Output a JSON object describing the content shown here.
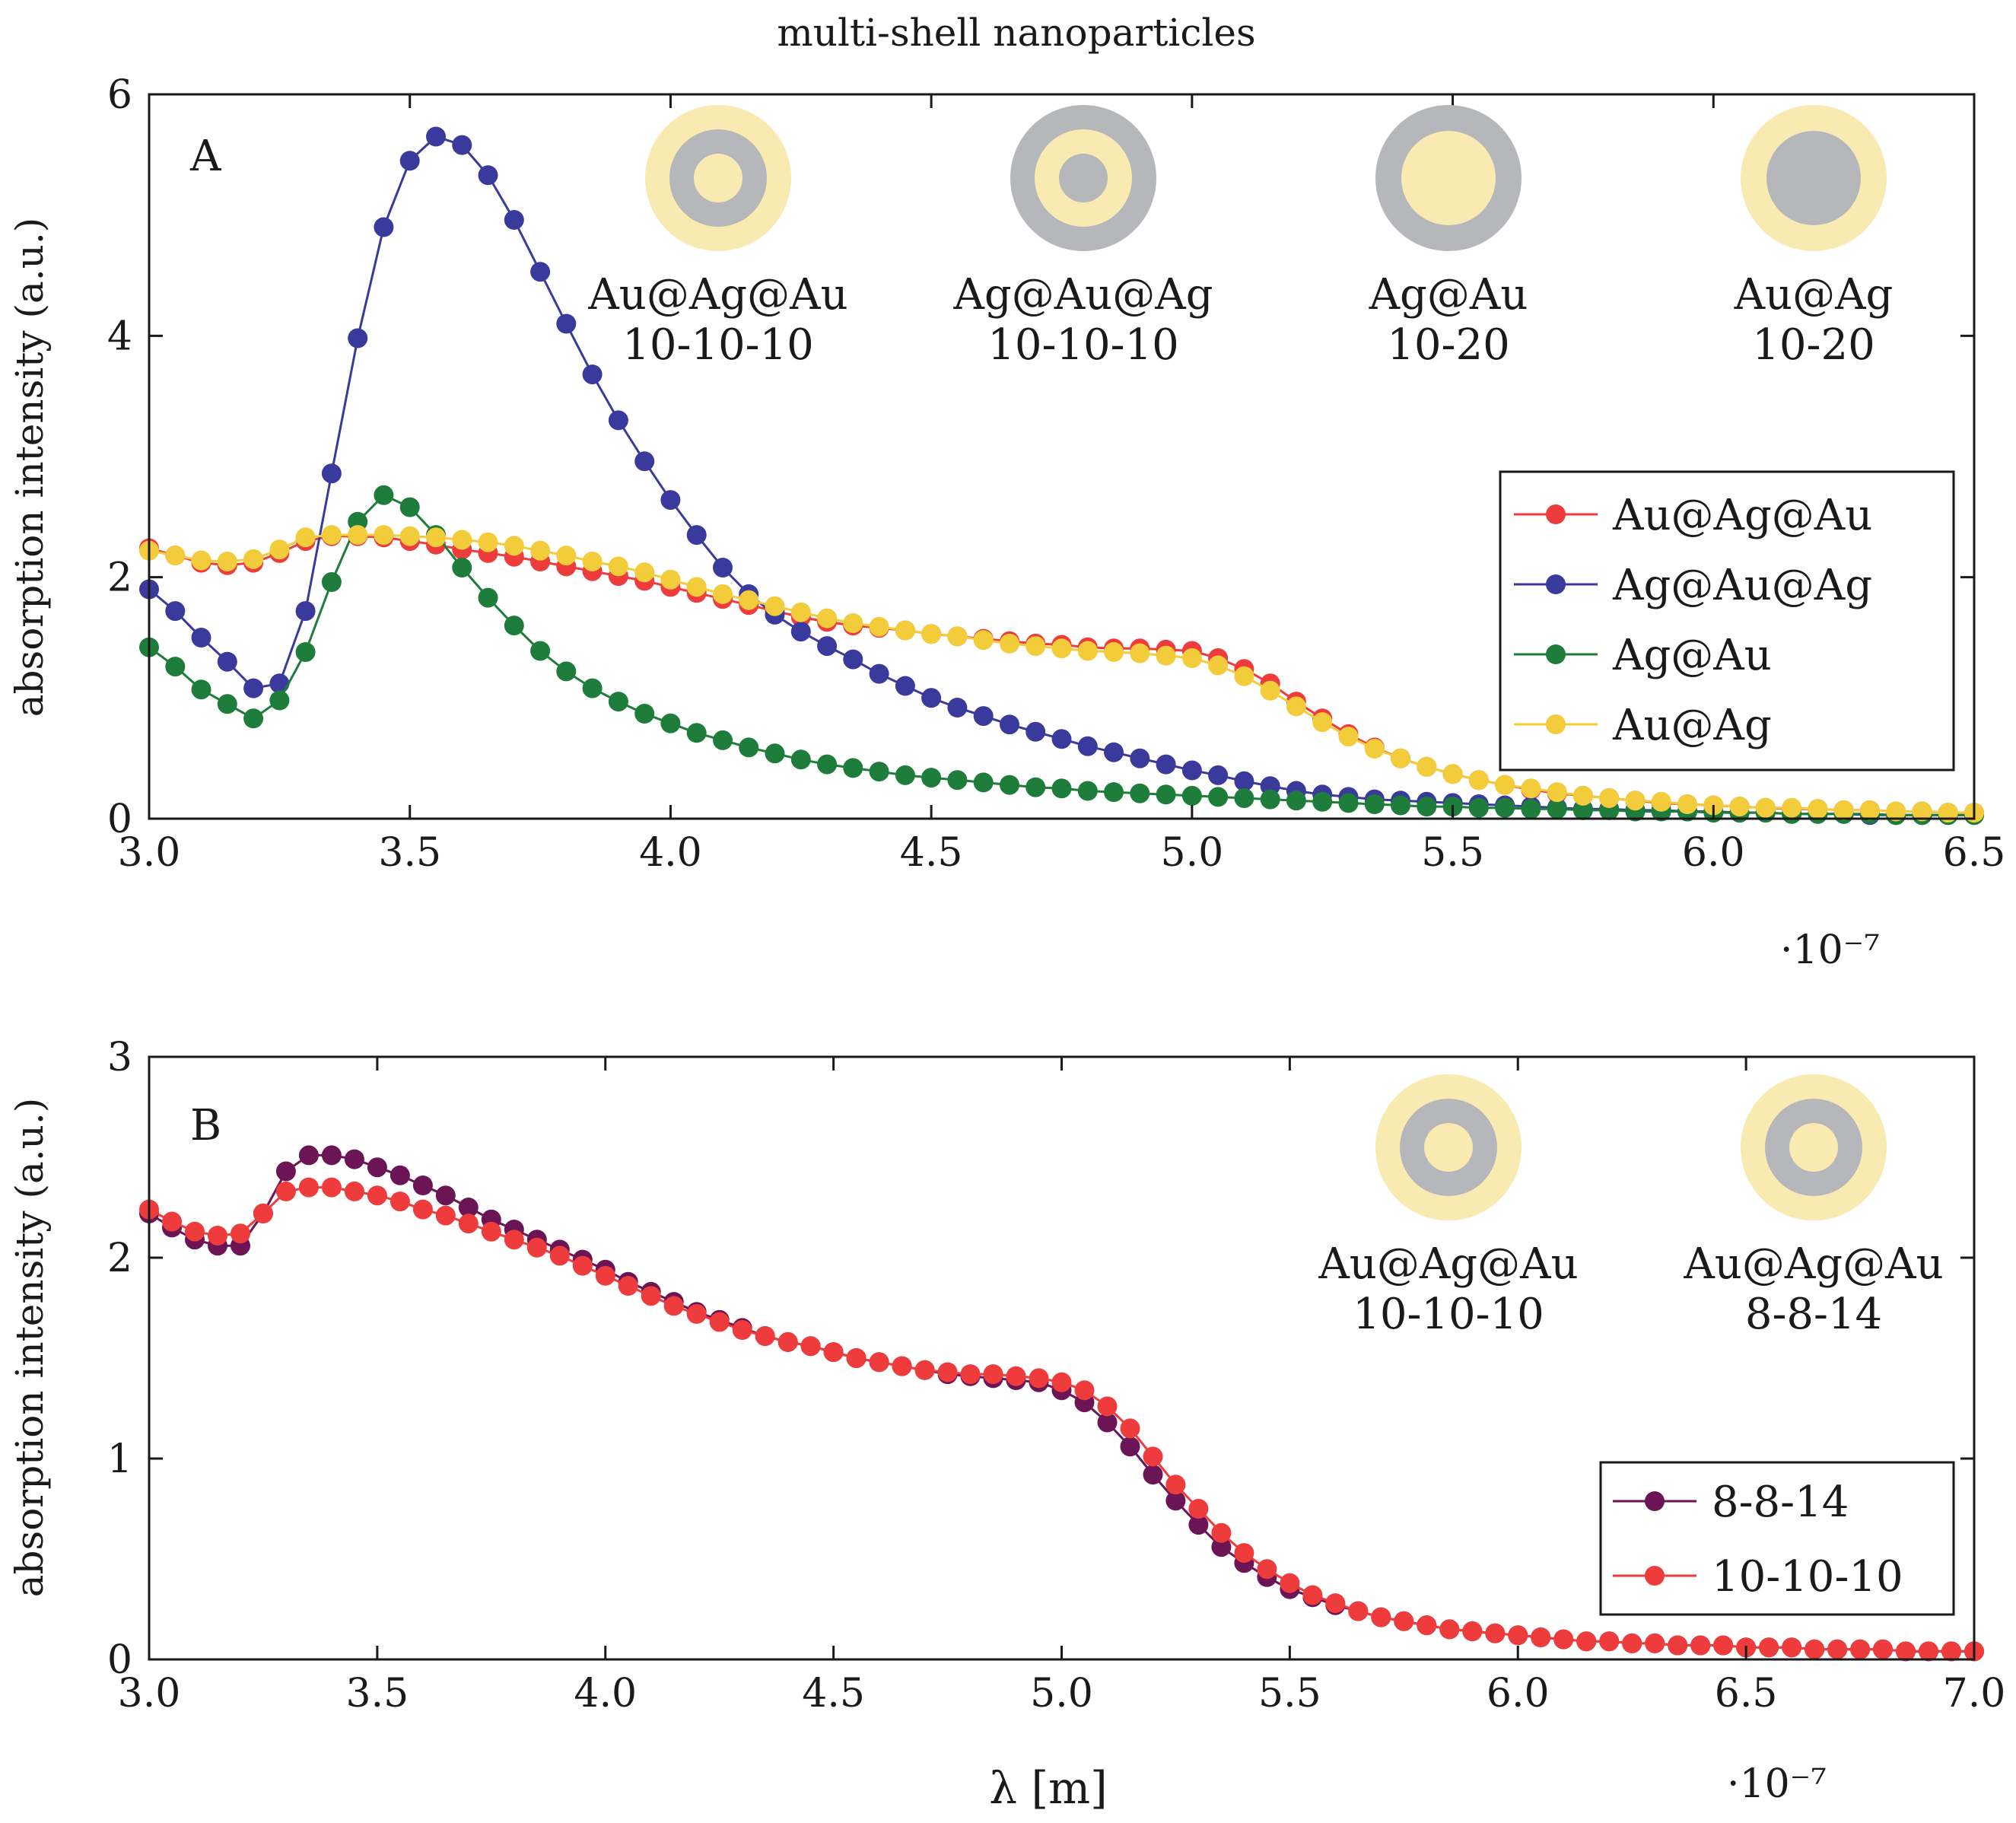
{
  "colors": {
    "red": "#ee3b3b",
    "blue": "#3a3a9c",
    "green": "#1e7d3a",
    "yellow": "#f2cc3a",
    "purple": "#6b1556",
    "gold_shell": "#f8eab0",
    "silver_shell": "#b6b7bb"
  },
  "chart_data": [
    {
      "type": "line",
      "panel": "A",
      "title": "multi-shell nanoparticles",
      "xlabel": "",
      "ylabel": "absorption intensity (a.u.)",
      "xlim": [
        3.0,
        6.5
      ],
      "ylim": [
        0,
        6
      ],
      "xticks": [
        "3.0",
        "3.5",
        "4.0",
        "4.5",
        "5.0",
        "5.5",
        "6.0",
        "6.5"
      ],
      "yticks": [
        "0",
        "2",
        "4",
        "6"
      ],
      "x_exponent": "·10⁻⁷",
      "x": [
        3.0,
        3.05,
        3.1,
        3.15,
        3.2,
        3.25,
        3.3,
        3.35,
        3.4,
        3.45,
        3.5,
        3.55,
        3.6,
        3.65,
        3.7,
        3.75,
        3.8,
        3.85,
        3.9,
        3.95,
        4.0,
        4.05,
        4.1,
        4.15,
        4.2,
        4.25,
        4.3,
        4.35,
        4.4,
        4.45,
        4.5,
        4.55,
        4.6,
        4.65,
        4.7,
        4.75,
        4.8,
        4.85,
        4.9,
        4.95,
        5.0,
        5.05,
        5.1,
        5.15,
        5.2,
        5.25,
        5.3,
        5.35,
        5.4,
        5.45,
        5.5,
        5.55,
        5.6,
        5.65,
        5.7,
        5.75,
        5.8,
        5.85,
        5.9,
        5.95,
        6.0,
        6.05,
        6.1,
        6.15,
        6.2,
        6.25,
        6.3,
        6.35,
        6.4,
        6.45,
        6.5
      ],
      "series": [
        {
          "name": "Au@Ag@Au",
          "color": "red",
          "values": [
            2.24,
            2.18,
            2.12,
            2.1,
            2.12,
            2.2,
            2.3,
            2.34,
            2.34,
            2.33,
            2.3,
            2.27,
            2.23,
            2.2,
            2.17,
            2.13,
            2.09,
            2.05,
            2.01,
            1.97,
            1.92,
            1.87,
            1.82,
            1.77,
            1.72,
            1.67,
            1.63,
            1.6,
            1.58,
            1.56,
            1.53,
            1.51,
            1.49,
            1.47,
            1.45,
            1.44,
            1.42,
            1.41,
            1.41,
            1.4,
            1.39,
            1.33,
            1.24,
            1.12,
            0.97,
            0.83,
            0.7,
            0.59,
            0.5,
            0.43,
            0.37,
            0.32,
            0.28,
            0.24,
            0.21,
            0.19,
            0.17,
            0.15,
            0.13,
            0.12,
            0.11,
            0.1,
            0.09,
            0.08,
            0.08,
            0.07,
            0.07,
            0.06,
            0.06,
            0.05,
            0.05
          ]
        },
        {
          "name": "Ag@Au@Ag",
          "color": "blue",
          "values": [
            1.9,
            1.72,
            1.5,
            1.3,
            1.08,
            1.12,
            1.72,
            2.86,
            3.98,
            4.9,
            5.45,
            5.65,
            5.58,
            5.33,
            4.96,
            4.53,
            4.1,
            3.68,
            3.3,
            2.96,
            2.64,
            2.35,
            2.08,
            1.86,
            1.69,
            1.55,
            1.43,
            1.32,
            1.2,
            1.1,
            1.0,
            0.92,
            0.85,
            0.78,
            0.72,
            0.66,
            0.6,
            0.55,
            0.5,
            0.45,
            0.4,
            0.36,
            0.31,
            0.27,
            0.23,
            0.2,
            0.18,
            0.16,
            0.15,
            0.14,
            0.13,
            0.12,
            0.11,
            0.1,
            0.09,
            0.08,
            0.08,
            0.07,
            0.07,
            0.06,
            0.06,
            0.05,
            0.05,
            0.04,
            0.04,
            0.04,
            0.03,
            0.03,
            0.03,
            0.03,
            0.03
          ]
        },
        {
          "name": "Ag@Au",
          "color": "green",
          "values": [
            1.42,
            1.26,
            1.07,
            0.95,
            0.83,
            0.98,
            1.38,
            1.96,
            2.46,
            2.68,
            2.58,
            2.35,
            2.08,
            1.83,
            1.6,
            1.39,
            1.22,
            1.08,
            0.97,
            0.87,
            0.79,
            0.71,
            0.65,
            0.59,
            0.54,
            0.49,
            0.45,
            0.42,
            0.39,
            0.36,
            0.34,
            0.32,
            0.3,
            0.28,
            0.26,
            0.25,
            0.23,
            0.22,
            0.21,
            0.2,
            0.19,
            0.18,
            0.17,
            0.16,
            0.15,
            0.14,
            0.13,
            0.12,
            0.11,
            0.1,
            0.1,
            0.09,
            0.09,
            0.08,
            0.08,
            0.07,
            0.07,
            0.06,
            0.06,
            0.06,
            0.05,
            0.05,
            0.05,
            0.04,
            0.04,
            0.04,
            0.04,
            0.03,
            0.03,
            0.03,
            0.03
          ]
        },
        {
          "name": "Au@Ag",
          "color": "yellow",
          "values": [
            2.22,
            2.18,
            2.14,
            2.13,
            2.15,
            2.23,
            2.33,
            2.35,
            2.35,
            2.35,
            2.34,
            2.33,
            2.31,
            2.29,
            2.26,
            2.22,
            2.18,
            2.13,
            2.09,
            2.04,
            1.98,
            1.92,
            1.86,
            1.81,
            1.76,
            1.71,
            1.66,
            1.62,
            1.59,
            1.56,
            1.53,
            1.51,
            1.48,
            1.45,
            1.43,
            1.41,
            1.39,
            1.38,
            1.37,
            1.35,
            1.33,
            1.27,
            1.18,
            1.06,
            0.93,
            0.8,
            0.68,
            0.58,
            0.5,
            0.43,
            0.37,
            0.32,
            0.28,
            0.25,
            0.22,
            0.19,
            0.17,
            0.15,
            0.14,
            0.12,
            0.11,
            0.1,
            0.09,
            0.09,
            0.08,
            0.07,
            0.07,
            0.06,
            0.06,
            0.05,
            0.05
          ]
        }
      ]
    },
    {
      "type": "line",
      "panel": "B",
      "xlabel": "λ [m]",
      "ylabel": "absorption intensity (a.u.)",
      "xlim": [
        3.0,
        7.0
      ],
      "ylim": [
        0,
        3
      ],
      "xticks": [
        "3.0",
        "3.5",
        "4.0",
        "4.5",
        "5.0",
        "5.5",
        "6.0",
        "6.5",
        "7.0"
      ],
      "yticks": [
        "0",
        "1",
        "2",
        "3"
      ],
      "x_exponent": "·10⁻⁷",
      "x": [
        3.0,
        3.05,
        3.1,
        3.15,
        3.2,
        3.25,
        3.3,
        3.35,
        3.4,
        3.45,
        3.5,
        3.55,
        3.6,
        3.65,
        3.7,
        3.75,
        3.8,
        3.85,
        3.9,
        3.95,
        4.0,
        4.05,
        4.1,
        4.15,
        4.2,
        4.25,
        4.3,
        4.35,
        4.4,
        4.45,
        4.5,
        4.55,
        4.6,
        4.65,
        4.7,
        4.75,
        4.8,
        4.85,
        4.9,
        4.95,
        5.0,
        5.05,
        5.1,
        5.15,
        5.2,
        5.25,
        5.3,
        5.35,
        5.4,
        5.45,
        5.5,
        5.55,
        5.6,
        5.65,
        5.7,
        5.75,
        5.8,
        5.85,
        5.9,
        5.95,
        6.0,
        6.05,
        6.1,
        6.15,
        6.2,
        6.25,
        6.3,
        6.35,
        6.4,
        6.45,
        6.5,
        6.55,
        6.6,
        6.65,
        6.7,
        6.75,
        6.8,
        6.85,
        6.9,
        6.95,
        7.0
      ],
      "series": [
        {
          "name": "8-8-14",
          "color": "purple",
          "values": [
            2.22,
            2.15,
            2.09,
            2.06,
            2.06,
            2.22,
            2.43,
            2.51,
            2.51,
            2.49,
            2.45,
            2.41,
            2.36,
            2.31,
            2.25,
            2.19,
            2.14,
            2.09,
            2.04,
            1.99,
            1.94,
            1.88,
            1.83,
            1.78,
            1.73,
            1.69,
            1.65,
            1.61,
            1.58,
            1.56,
            1.53,
            1.5,
            1.48,
            1.46,
            1.44,
            1.42,
            1.41,
            1.4,
            1.39,
            1.38,
            1.34,
            1.28,
            1.18,
            1.06,
            0.92,
            0.79,
            0.67,
            0.56,
            0.48,
            0.41,
            0.35,
            0.31,
            0.27,
            0.24,
            0.21,
            0.19,
            0.17,
            0.15,
            0.14,
            0.13,
            0.12,
            0.11,
            0.1,
            0.09,
            0.09,
            0.08,
            0.08,
            0.07,
            0.07,
            0.07,
            0.06,
            0.06,
            0.06,
            0.05,
            0.05,
            0.05,
            0.05,
            0.04,
            0.04,
            0.04,
            0.04
          ]
        },
        {
          "name": "10-10-10",
          "color": "red",
          "values": [
            2.24,
            2.18,
            2.13,
            2.11,
            2.12,
            2.22,
            2.33,
            2.35,
            2.35,
            2.33,
            2.31,
            2.28,
            2.24,
            2.21,
            2.17,
            2.13,
            2.09,
            2.05,
            2.01,
            1.96,
            1.91,
            1.86,
            1.81,
            1.76,
            1.72,
            1.68,
            1.64,
            1.61,
            1.58,
            1.56,
            1.53,
            1.5,
            1.48,
            1.46,
            1.44,
            1.43,
            1.42,
            1.42,
            1.41,
            1.4,
            1.38,
            1.34,
            1.26,
            1.15,
            1.01,
            0.87,
            0.75,
            0.63,
            0.53,
            0.45,
            0.38,
            0.32,
            0.28,
            0.24,
            0.21,
            0.19,
            0.17,
            0.15,
            0.14,
            0.13,
            0.12,
            0.11,
            0.1,
            0.09,
            0.09,
            0.08,
            0.08,
            0.07,
            0.07,
            0.07,
            0.06,
            0.06,
            0.06,
            0.05,
            0.05,
            0.05,
            0.05,
            0.04,
            0.04,
            0.04,
            0.04
          ]
        }
      ]
    }
  ],
  "panel_a": {
    "title": "multi-shell nanoparticles",
    "letter": "A",
    "x_exponent": "·10⁻⁷",
    "nanoparticles": [
      {
        "name": "Au@Ag@Au",
        "sizes": "10-10-10",
        "layers": [
          "gold_shell",
          "silver_shell",
          "gold_shell"
        ]
      },
      {
        "name": "Ag@Au@Ag",
        "sizes": "10-10-10",
        "layers": [
          "silver_shell",
          "gold_shell",
          "silver_shell"
        ]
      },
      {
        "name": "Ag@Au",
        "sizes": "10-20",
        "layers": [
          "silver_shell",
          "gold_shell"
        ]
      },
      {
        "name": "Au@Ag",
        "sizes": "10-20",
        "layers": [
          "gold_shell",
          "silver_shell"
        ]
      }
    ],
    "legend": [
      "Au@Ag@Au",
      "Ag@Au@Ag",
      "Ag@Au",
      "Au@Ag"
    ]
  },
  "panel_b": {
    "letter": "B",
    "xlabel": "λ [m]",
    "x_exponent": "·10⁻⁷",
    "nanoparticles": [
      {
        "name": "Au@Ag@Au",
        "sizes": "10-10-10",
        "layers": [
          "gold_shell",
          "silver_shell",
          "gold_shell"
        ]
      },
      {
        "name": "Au@Ag@Au",
        "sizes": "8-8-14",
        "layers": [
          "gold_shell",
          "silver_shell",
          "gold_shell"
        ]
      }
    ],
    "legend": [
      "8-8-14",
      "10-10-10"
    ]
  }
}
